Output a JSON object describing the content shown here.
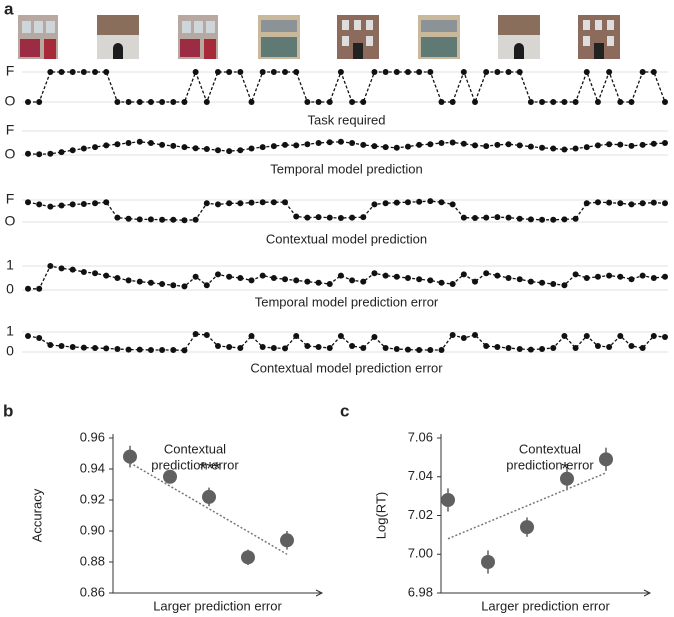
{
  "panels": [
    "a",
    "b",
    "c"
  ],
  "chart_data": [
    {
      "type": "line",
      "xlabel": "Task required",
      "ylim": [
        0,
        1
      ],
      "yticks": [
        {
          "value": 1,
          "label": "F"
        },
        {
          "value": 0,
          "label": "O"
        }
      ],
      "grid": true,
      "color": "#111",
      "values": [
        0,
        0,
        1,
        1,
        1,
        1,
        1,
        1,
        0,
        0,
        0,
        0,
        0,
        0,
        0,
        1,
        0,
        1,
        1,
        1,
        0,
        1,
        1,
        1,
        1,
        0,
        0,
        0,
        1,
        0,
        0,
        1,
        1,
        1,
        1,
        1,
        1,
        0,
        0,
        1,
        0,
        1,
        1,
        1,
        1,
        0,
        0,
        0,
        0,
        0,
        1,
        0,
        1,
        0,
        0,
        1,
        1,
        0
      ]
    },
    {
      "type": "line",
      "xlabel": "Temporal model prediction",
      "ylim": [
        0,
        1
      ],
      "yticks": [
        {
          "value": 1,
          "label": "F"
        },
        {
          "value": 0,
          "label": "O"
        }
      ],
      "grid": true,
      "color": "#111",
      "values": [
        0.05,
        0.03,
        0.05,
        0.12,
        0.2,
        0.27,
        0.33,
        0.4,
        0.45,
        0.5,
        0.55,
        0.5,
        0.42,
        0.38,
        0.33,
        0.28,
        0.25,
        0.2,
        0.16,
        0.2,
        0.27,
        0.33,
        0.37,
        0.42,
        0.4,
        0.45,
        0.5,
        0.53,
        0.55,
        0.5,
        0.42,
        0.37,
        0.33,
        0.3,
        0.35,
        0.42,
        0.45,
        0.5,
        0.52,
        0.47,
        0.4,
        0.37,
        0.42,
        0.45,
        0.4,
        0.35,
        0.3,
        0.27,
        0.23,
        0.27,
        0.33,
        0.4,
        0.45,
        0.43,
        0.38,
        0.42,
        0.47,
        0.5
      ]
    },
    {
      "type": "line",
      "xlabel": "Contextual model prediction",
      "ylim": [
        0,
        1
      ],
      "yticks": [
        {
          "value": 1,
          "label": "F"
        },
        {
          "value": 0,
          "label": "O"
        }
      ],
      "grid": true,
      "color": "#111",
      "values": [
        0.9,
        0.8,
        0.7,
        0.75,
        0.8,
        0.82,
        0.85,
        0.9,
        0.2,
        0.15,
        0.12,
        0.12,
        0.1,
        0.1,
        0.08,
        0.1,
        0.85,
        0.8,
        0.85,
        0.85,
        0.88,
        0.9,
        0.9,
        0.9,
        0.25,
        0.2,
        0.22,
        0.2,
        0.18,
        0.2,
        0.22,
        0.8,
        0.85,
        0.88,
        0.9,
        0.92,
        0.95,
        0.9,
        0.8,
        0.2,
        0.18,
        0.2,
        0.22,
        0.2,
        0.15,
        0.12,
        0.1,
        0.1,
        0.12,
        0.15,
        0.85,
        0.9,
        0.88,
        0.85,
        0.8,
        0.85,
        0.88,
        0.85
      ]
    },
    {
      "type": "line",
      "xlabel": "Temporal model prediction error",
      "ylim": [
        0,
        1
      ],
      "yticks": [
        1,
        0
      ],
      "grid": true,
      "color": "#111",
      "values": [
        0.05,
        0.05,
        1,
        0.9,
        0.85,
        0.75,
        0.7,
        0.6,
        0.5,
        0.4,
        0.35,
        0.3,
        0.25,
        0.2,
        0.15,
        0.55,
        0.2,
        0.65,
        0.55,
        0.5,
        0.4,
        0.6,
        0.5,
        0.45,
        0.4,
        0.35,
        0.3,
        0.25,
        0.6,
        0.4,
        0.35,
        0.7,
        0.6,
        0.55,
        0.5,
        0.45,
        0.4,
        0.3,
        0.25,
        0.65,
        0.35,
        0.7,
        0.6,
        0.5,
        0.45,
        0.35,
        0.3,
        0.25,
        0.2,
        0.65,
        0.5,
        0.55,
        0.6,
        0.55,
        0.45,
        0.6,
        0.5,
        0.55
      ]
    },
    {
      "type": "line",
      "xlabel": "Contextual model prediction error",
      "ylim": [
        0,
        1
      ],
      "yticks": [
        1,
        0
      ],
      "grid": true,
      "color": "#111",
      "values": [
        0.8,
        0.7,
        0.35,
        0.3,
        0.25,
        0.22,
        0.2,
        0.18,
        0.15,
        0.12,
        0.12,
        0.1,
        0.1,
        0.1,
        0.08,
        0.9,
        0.85,
        0.3,
        0.25,
        0.2,
        0.8,
        0.25,
        0.2,
        0.18,
        0.8,
        0.3,
        0.25,
        0.2,
        0.8,
        0.3,
        0.2,
        0.75,
        0.2,
        0.15,
        0.12,
        0.1,
        0.1,
        0.1,
        0.85,
        0.7,
        0.85,
        0.3,
        0.25,
        0.2,
        0.15,
        0.12,
        0.15,
        0.2,
        0.8,
        0.2,
        0.8,
        0.3,
        0.25,
        0.8,
        0.3,
        0.2,
        0.8,
        0.75
      ]
    },
    {
      "type": "scatter",
      "title": [
        "Contextual",
        "prediction error"
      ],
      "annotation": "***",
      "xlabel": "Larger prediction error",
      "ylabel": "Accuracy",
      "color": "#606060",
      "categories": [
        null,
        null,
        null,
        null,
        null
      ],
      "values": [
        0.948,
        0.935,
        0.922,
        0.883,
        0.894
      ],
      "errors": [
        0.007,
        0.004,
        0.006,
        0.005,
        0.006
      ],
      "trend": [
        0.944,
        0.885
      ],
      "ylim": [
        0.86,
        0.96
      ],
      "yticks": [
        0.86,
        0.88,
        {
          "value": 0.9,
          "label": "0.90"
        },
        0.92,
        0.94,
        0.96
      ]
    },
    {
      "type": "scatter",
      "title": [
        "Contextual",
        "prediction error"
      ],
      "annotation": "*",
      "xlabel": "Larger prediction error",
      "ylabel": "Log(RT)",
      "color": "#606060",
      "categories": [
        null,
        null,
        null,
        null,
        null
      ],
      "values": [
        7.028,
        6.996,
        7.014,
        7.039,
        7.049
      ],
      "errors": [
        0.006,
        0.006,
        0.005,
        0.006,
        0.006
      ],
      "trend": [
        7.008,
        7.042
      ],
      "ylim": [
        6.98,
        7.06
      ],
      "yticks": [
        6.98,
        {
          "value": 7,
          "label": "7.00"
        },
        7.02,
        7.04,
        7.06
      ]
    }
  ]
}
